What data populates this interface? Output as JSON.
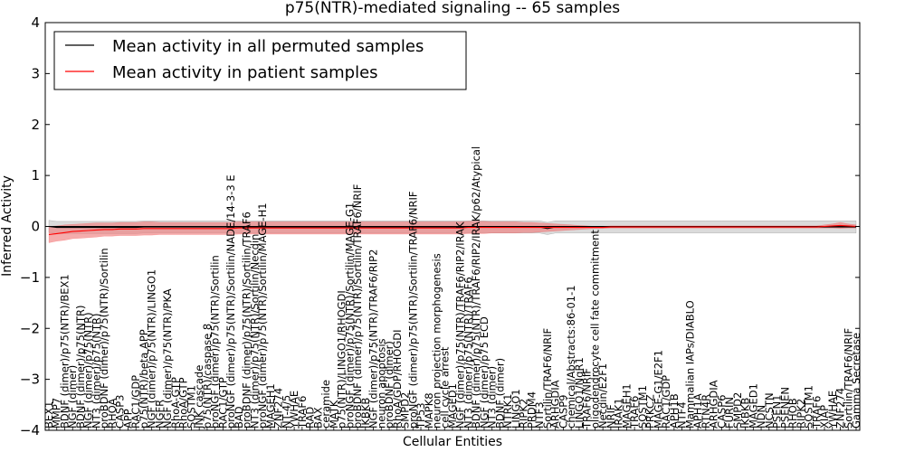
{
  "chart_data": {
    "type": "line",
    "title": "p75(NTR)-mediated signaling -- 65 samples",
    "xlabel": "Cellular Entities",
    "ylabel": "Inferred Activity",
    "ylim": [
      -4,
      4
    ],
    "yticks": [
      {
        "value": 4,
        "label": "4"
      },
      {
        "value": 3,
        "label": "3"
      },
      {
        "value": 2,
        "label": "2"
      },
      {
        "value": 1,
        "label": "1"
      },
      {
        "value": 0,
        "label": "0"
      },
      {
        "value": -1,
        "label": "−1"
      },
      {
        "value": -2,
        "label": "−2"
      },
      {
        "value": -3,
        "label": "−3"
      },
      {
        "value": -4,
        "label": "−4"
      }
    ],
    "grid": false,
    "legend_position": "top-left",
    "x_labels": [
      "BEX1",
      "MMP7",
      "BDNF (dimer)/p75(NTR)/BEX1",
      "NGF (dimer)",
      "BDNF (dimer)/p75(NTR)",
      "NGF (dimer)/p75(NTR)",
      "NT3 (dimer)/p75(NTR)",
      "proBDNF (dimer)/p75(NTR)/Sortilin",
      "RHOA",
      "CASP3",
      "APP",
      "RAC1/GDP",
      "p75(NTR)/beta APP",
      "NGF (dimer)/p75(NTR)/LINGO1",
      "NGFR",
      "NGF (dimer)/p75(NTR)/PKA",
      "RhoA-GTP",
      "RhoA/GTP",
      "SQSTM1",
      "JNK cascade",
      "p75(NTR)/caspase 8",
      "proNGF (dimer)/p75(NTR)/Sortilin",
      "RAC1/GTP",
      "proNGF (dimer)/p75(NTR)/Sortilin/NADE/14-3-3 E",
      "BAD",
      "proBDNF (dimer)/p75(NTR)/Sortilin/TRAF6",
      "NT3 (dimer)/p75(NTR)/Sortilin/Necdin",
      "proNGF (dimer)/p75(NTR)/Sortilin/MAGE-H1",
      "MAGEH1",
      "ZNF274",
      "NT-4/5",
      "YWHAE",
      "TRAF6",
      "RAD",
      "BAX",
      "ceramide",
      "MATK",
      "p75(NTR)/LINGO1/RHOGDI",
      "proNGF (dimer)/p75(NTR)/Sortilin/MAGE-G1",
      "proBDNF (dimer)/p75(NTR)/Sortilin/TRAF6/NRIF",
      "IKBKB",
      "NGF (dimer)/p75(NTR)/TRAF6/RIP2",
      "neuron apoptosis",
      "proBDNF (dimer)",
      "RhoA/GDP/RHOGDI",
      "SMPD2",
      "proNGF (dimer)/p75(NTR)/Sortilin/TRAF6/NRIF",
      "TP53",
      "MAPK8",
      "neuron projection morphogenesis",
      "cell cycle arrest",
      "MAGED1",
      "NGF (dimer)/p75(NTR)/TRAF6/RIP2/IRAK",
      "NT3 (dimer)/p75(NTR)/TRAF6",
      "BDNF (dimer)/p75(NTR)/TRAF6/RIP2/IRAK/p62/Atypical",
      "NGF (dimer)/p75 ECD",
      "NT3 (dimer)",
      "BDNF (dimer)",
      "NTRK1",
      "LINGO1",
      "RIPK2",
      "PRDM4",
      "NTF3",
      "Sortilin/TRAF6/NRIF",
      "ARHGDIA",
      "CASP9",
      "chemical/Abstracts:86-01-1",
      "LINGO1/NgR1",
      "TRAF6/NRIF",
      "oligodendrocyte cell fate commitment",
      "Necdin/E2F1",
      "NRIF",
      "IRAK1",
      "MAGEH1",
      "TRAF6",
      "SQSTM1",
      "PRKCZ",
      "MAGE-G1/E2F1",
      "RAC1/GDP",
      "APH1B",
      "NTF4",
      "Mammalian IAPs/DIABLO",
      "APH1A",
      "RTN4R",
      "ARHGDIA",
      "CASP6",
      "FURIN",
      "SMPD2",
      "IKBKB",
      "MAGED1",
      "NDN",
      "NCSTN",
      "PSEN1",
      "PSENEN",
      "RHOB",
      "RIPK2",
      "SQSTM1",
      "TRAF6",
      "XIAP",
      "YWHAE",
      "ZNF274",
      "Sortilin/TRAF6/NRIF",
      "Gamma Secretase"
    ],
    "series": [
      {
        "name": "Mean activity in all permuted samples",
        "color": "#000000",
        "band_color": "#b0b0b0",
        "mean": [
          0.0,
          -0.02,
          -0.02,
          -0.02,
          -0.02,
          -0.02,
          -0.02,
          -0.02,
          -0.02,
          -0.02,
          -0.02,
          -0.02,
          -0.01,
          -0.01,
          -0.01,
          -0.01,
          -0.01,
          -0.01,
          -0.01,
          -0.01,
          -0.01,
          -0.01,
          -0.01,
          -0.01,
          -0.01,
          -0.01,
          -0.01,
          -0.01,
          -0.01,
          -0.01,
          -0.01,
          -0.01,
          -0.01,
          -0.01,
          -0.01,
          -0.01,
          -0.01,
          -0.01,
          -0.01,
          -0.01,
          -0.01,
          -0.01,
          -0.01,
          -0.01,
          -0.01,
          -0.01,
          -0.01,
          -0.01,
          -0.01,
          -0.01,
          -0.01,
          -0.01,
          -0.01,
          -0.01,
          -0.01,
          -0.01,
          -0.01,
          -0.01,
          -0.01,
          -0.01,
          -0.01,
          -0.01,
          -0.01,
          -0.04,
          -0.01,
          -0.01,
          -0.01,
          -0.01,
          -0.01,
          -0.01,
          -0.01,
          -0.01,
          -0.01,
          -0.01,
          -0.01,
          -0.01,
          -0.01,
          -0.01,
          -0.01,
          -0.01,
          -0.01,
          -0.01,
          -0.01,
          -0.01,
          -0.01,
          -0.01,
          -0.01,
          -0.01,
          -0.01,
          -0.01,
          -0.01,
          -0.01,
          -0.01,
          -0.01,
          -0.01,
          -0.01,
          -0.01,
          -0.01,
          -0.01,
          -0.01,
          -0.01,
          -0.01,
          -0.01
        ],
        "spread": [
          0.12,
          0.12,
          0.12,
          0.12,
          0.12,
          0.12,
          0.12,
          0.12,
          0.12,
          0.12,
          0.12,
          0.12,
          0.12,
          0.12,
          0.12,
          0.12,
          0.12,
          0.12,
          0.12,
          0.12,
          0.12,
          0.12,
          0.12,
          0.12,
          0.12,
          0.12,
          0.12,
          0.12,
          0.12,
          0.12,
          0.12,
          0.12,
          0.12,
          0.12,
          0.12,
          0.12,
          0.12,
          0.12,
          0.12,
          0.12,
          0.12,
          0.12,
          0.12,
          0.12,
          0.12,
          0.12,
          0.12,
          0.12,
          0.12,
          0.12,
          0.12,
          0.12,
          0.12,
          0.12,
          0.12,
          0.12,
          0.12,
          0.12,
          0.12,
          0.12,
          0.12,
          0.12,
          0.12,
          0.12,
          0.12,
          0.12,
          0.12,
          0.12,
          0.12,
          0.12,
          0.12,
          0.12,
          0.12,
          0.12,
          0.12,
          0.12,
          0.12,
          0.12,
          0.12,
          0.12,
          0.12,
          0.12,
          0.12,
          0.12,
          0.12,
          0.12,
          0.12,
          0.12,
          0.12,
          0.12,
          0.12,
          0.12,
          0.12,
          0.12,
          0.12,
          0.12,
          0.12,
          0.12,
          0.12,
          0.12,
          0.12,
          0.12,
          0.12
        ]
      },
      {
        "name": "Mean activity in patient samples",
        "color": "#ff0000",
        "band_color": "#f08080",
        "mean": [
          -0.16,
          -0.14,
          -0.12,
          -0.1,
          -0.09,
          -0.08,
          -0.07,
          -0.06,
          -0.06,
          -0.05,
          -0.05,
          -0.05,
          -0.04,
          -0.04,
          -0.04,
          -0.04,
          -0.04,
          -0.04,
          -0.04,
          -0.04,
          -0.04,
          -0.04,
          -0.04,
          -0.04,
          -0.03,
          -0.03,
          -0.03,
          -0.03,
          -0.03,
          -0.03,
          -0.03,
          -0.03,
          -0.03,
          -0.03,
          -0.03,
          -0.03,
          -0.03,
          -0.03,
          -0.03,
          -0.03,
          -0.03,
          -0.03,
          -0.03,
          -0.03,
          -0.03,
          -0.03,
          -0.03,
          -0.03,
          -0.03,
          -0.03,
          -0.03,
          -0.03,
          -0.03,
          -0.02,
          -0.02,
          -0.02,
          -0.02,
          -0.02,
          -0.02,
          -0.02,
          -0.02,
          -0.02,
          -0.02,
          -0.02,
          -0.02,
          -0.02,
          -0.02,
          -0.02,
          -0.02,
          -0.02,
          -0.02,
          -0.01,
          -0.01,
          -0.01,
          -0.01,
          -0.01,
          -0.01,
          -0.01,
          -0.01,
          -0.01,
          -0.01,
          -0.01,
          -0.01,
          -0.01,
          -0.01,
          -0.01,
          -0.01,
          -0.01,
          -0.01,
          -0.01,
          -0.01,
          -0.01,
          -0.01,
          -0.01,
          -0.01,
          -0.01,
          -0.01,
          -0.01,
          0.0,
          0.01,
          0.02,
          0.01,
          0.0
        ],
        "spread": [
          0.16,
          0.15,
          0.15,
          0.14,
          0.14,
          0.14,
          0.14,
          0.13,
          0.13,
          0.13,
          0.13,
          0.13,
          0.13,
          0.13,
          0.12,
          0.12,
          0.12,
          0.12,
          0.12,
          0.12,
          0.12,
          0.12,
          0.12,
          0.12,
          0.12,
          0.12,
          0.12,
          0.12,
          0.12,
          0.12,
          0.12,
          0.12,
          0.12,
          0.12,
          0.12,
          0.12,
          0.12,
          0.12,
          0.12,
          0.12,
          0.12,
          0.12,
          0.12,
          0.12,
          0.12,
          0.12,
          0.12,
          0.12,
          0.12,
          0.12,
          0.12,
          0.12,
          0.12,
          0.12,
          0.12,
          0.12,
          0.11,
          0.11,
          0.11,
          0.11,
          0.1,
          0.1,
          0.09,
          0.08,
          0.07,
          0.06,
          0.05,
          0.04,
          0.03,
          0.02,
          0.02,
          0.02,
          0.02,
          0.02,
          0.02,
          0.02,
          0.02,
          0.02,
          0.02,
          0.02,
          0.02,
          0.02,
          0.02,
          0.02,
          0.02,
          0.02,
          0.02,
          0.02,
          0.02,
          0.02,
          0.02,
          0.02,
          0.02,
          0.02,
          0.02,
          0.02,
          0.02,
          0.02,
          0.03,
          0.04,
          0.06,
          0.04,
          0.03
        ]
      }
    ]
  }
}
